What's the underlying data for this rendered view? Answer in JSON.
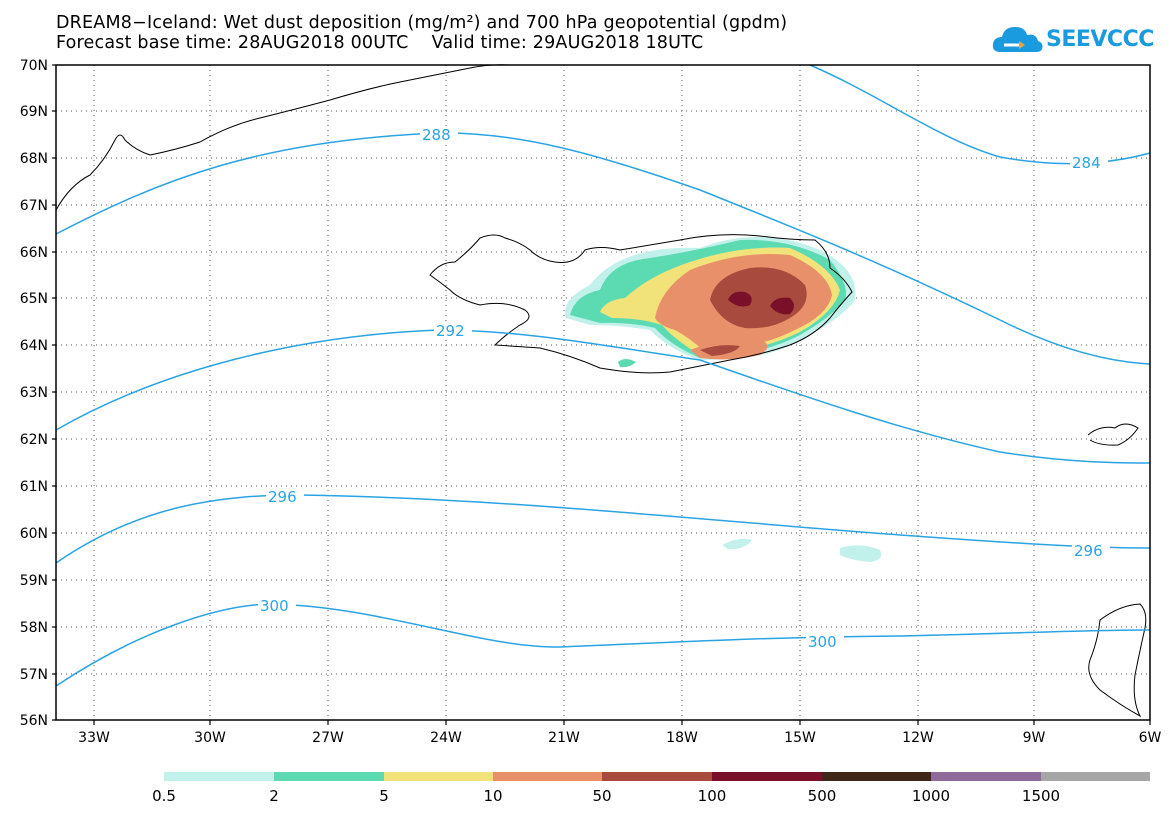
{
  "title": {
    "line1": "DREAM8−Iceland: Wet dust deposition (mg/m²) and 700 hPa geopotential (gpdm)",
    "line2": "Forecast base time: 28AUG2018 00UTC    Valid time: 29AUG2018 18UTC"
  },
  "logo": {
    "text": "SEEVCCC",
    "icon": "cloud-icon"
  },
  "axes": {
    "lat_labels": [
      "70N",
      "69N",
      "68N",
      "67N",
      "66N",
      "65N",
      "64N",
      "63N",
      "62N",
      "61N",
      "60N",
      "59N",
      "58N",
      "57N",
      "56N"
    ],
    "lon_labels": [
      "33W",
      "30W",
      "27W",
      "24W",
      "21W",
      "18W",
      "15W",
      "12W",
      "9W",
      "6W"
    ]
  },
  "contours": {
    "color": "#29a3e3",
    "labels": [
      "288",
      "284",
      "292",
      "296",
      "296",
      "300",
      "300"
    ]
  },
  "colorbar": {
    "labels": [
      "0.5",
      "2",
      "5",
      "10",
      "50",
      "100",
      "500",
      "1000",
      "1500"
    ],
    "colors": [
      "#c2f0ea",
      "#5cdbb3",
      "#f2e27a",
      "#e8906a",
      "#a84a3e",
      "#7a0f2a",
      "#3f2618",
      "#8e6a9a",
      "#a6a6a6"
    ]
  }
}
